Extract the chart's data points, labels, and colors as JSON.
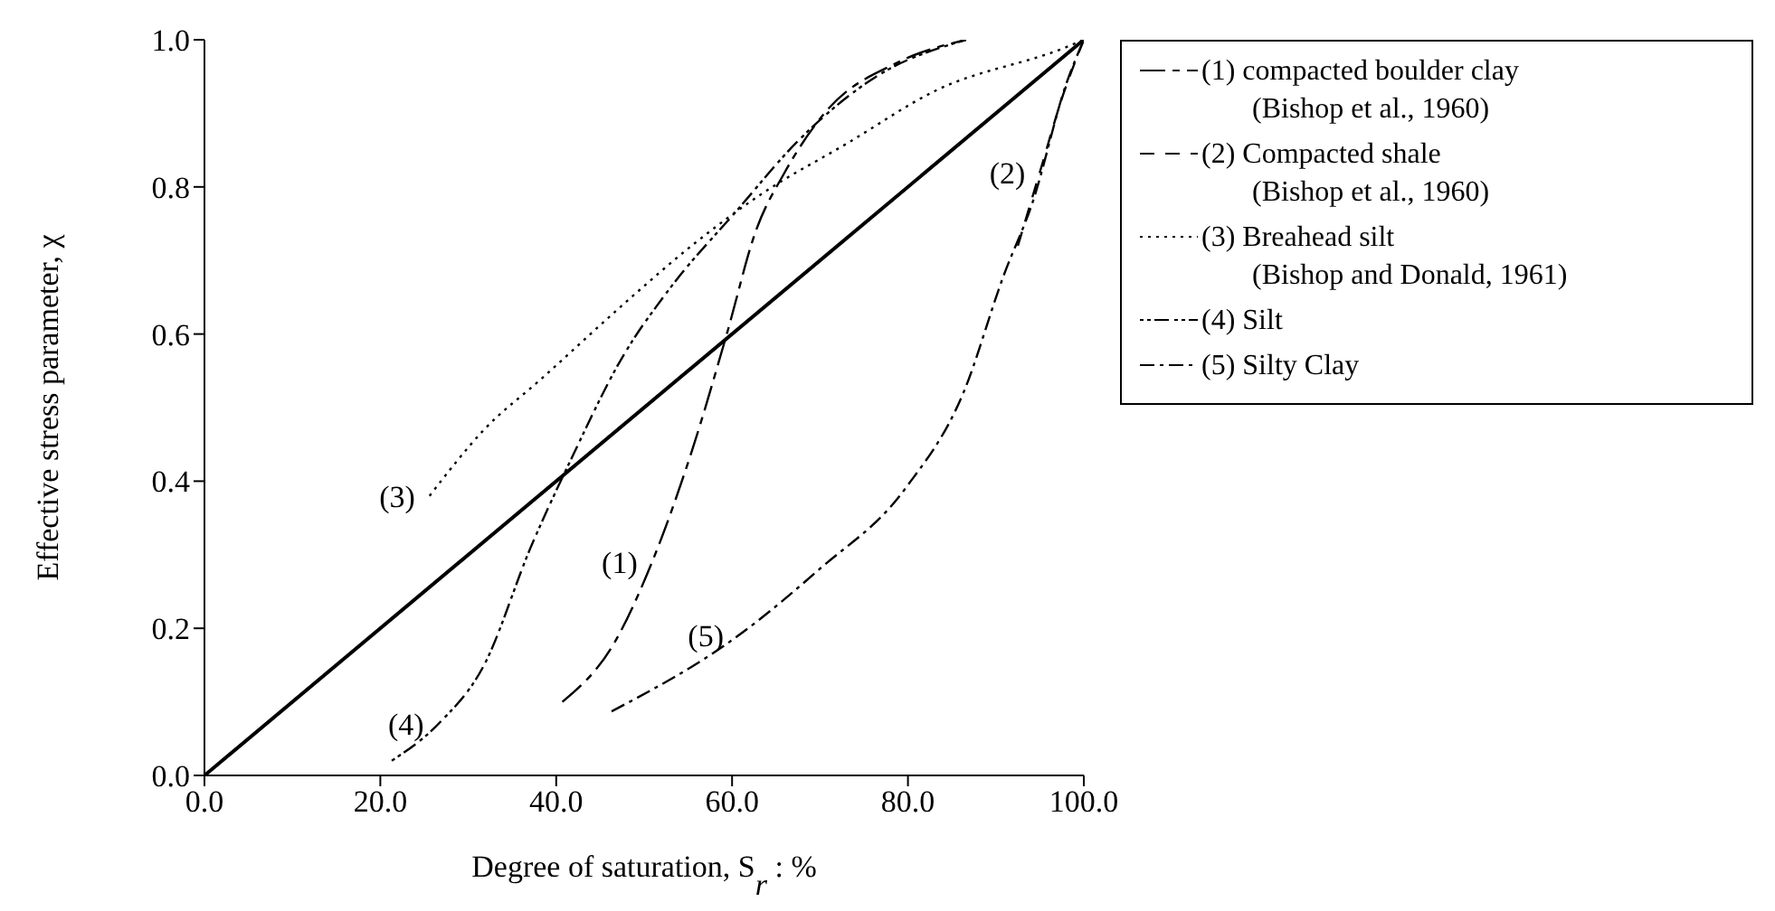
{
  "chart_data": {
    "type": "line",
    "xlabel": "Degree of saturation, S$_{r}$ : %",
    "ylabel": "Effective stress parameter, χ",
    "xlim": [
      0,
      100
    ],
    "ylim": [
      0,
      1
    ],
    "xticks": [
      {
        "value": 0,
        "label": "0.0"
      },
      {
        "value": 20,
        "label": "20.0"
      },
      {
        "value": 40,
        "label": "40.0"
      },
      {
        "value": 60,
        "label": "60.0"
      },
      {
        "value": 80,
        "label": "80.0"
      },
      {
        "value": 100,
        "label": "100.0"
      }
    ],
    "yticks": [
      {
        "value": 0,
        "label": "0.0"
      },
      {
        "value": 0.2,
        "label": "0.2"
      },
      {
        "value": 0.4,
        "label": "0.4"
      },
      {
        "value": 0.6,
        "label": "0.6"
      },
      {
        "value": 0.8,
        "label": "0.8"
      },
      {
        "value": 1,
        "label": "1.0"
      }
    ],
    "grid": false,
    "legend": "right",
    "marker": "none",
    "series": [
      {
        "name": "(1) compacted boulder clay\n(Bishop et al., 1960)",
        "color": "#000000",
        "line_style": "dashed",
        "x": [
          40.7,
          46.6,
          50.9,
          55.4,
          59.4,
          62.7,
          66,
          70.5,
          79,
          86.6
        ],
        "values": [
          0.1,
          0.18,
          0.29,
          0.44,
          0.6,
          0.74,
          0.82,
          0.9,
          0.97,
          1.0
        ]
      },
      {
        "name": "(2) Compacted shale\n(Bishop et al., 1960)",
        "color": "#000000",
        "line_style": "dashed",
        "x": [
          92.5,
          95,
          97.5,
          100
        ],
        "values": [
          0.72,
          0.82,
          0.92,
          1.0
        ]
      },
      {
        "name": "(3) Breahead silt\n(Bishop and Donald, 1961)",
        "color": "#000000",
        "line_style": "dotted",
        "x": [
          25.6,
          31.8,
          38.4,
          47.6,
          55.4,
          63.3,
          73.2,
          83,
          98,
          100
        ],
        "values": [
          0.38,
          0.47,
          0.54,
          0.64,
          0.72,
          0.79,
          0.86,
          0.93,
          0.99,
          1.0
        ]
      },
      {
        "name": "(4) Silt",
        "color": "#000000",
        "line_style": "dashed",
        "x": [
          21.3,
          26.6,
          31.8,
          37.1,
          41.7,
          47.6,
          52.8,
          60.7,
          67.3,
          76.4,
          86.6
        ],
        "values": [
          0.02,
          0.07,
          0.15,
          0.31,
          0.43,
          0.57,
          0.66,
          0.77,
          0.86,
          0.95,
          1.0
        ]
      },
      {
        "name": "(5) Silty Clay",
        "color": "#000000",
        "line_style": "dashed",
        "x": [
          46.3,
          60.7,
          69.9,
          79.7,
          86.3,
          90.9,
          94.2,
          98,
          100
        ],
        "values": [
          0.087,
          0.19,
          0.28,
          0.39,
          0.52,
          0.68,
          0.78,
          0.94,
          1.0
        ]
      },
      {
        "color": "#000000",
        "line_style": "solid",
        "x": [
          0,
          100
        ],
        "values": [
          0,
          1
        ]
      }
    ],
    "annotations": [
      {
        "text": "(1)",
        "x": 50.9,
        "y": 0.29
      },
      {
        "text": "(2)",
        "x": 95,
        "y": 0.82
      },
      {
        "text": "(3)",
        "x": 25.6,
        "y": 0.38
      },
      {
        "text": "(4)",
        "x": 26.6,
        "y": 0.07
      },
      {
        "text": "(5)",
        "x": 60.7,
        "y": 0.19
      }
    ]
  }
}
